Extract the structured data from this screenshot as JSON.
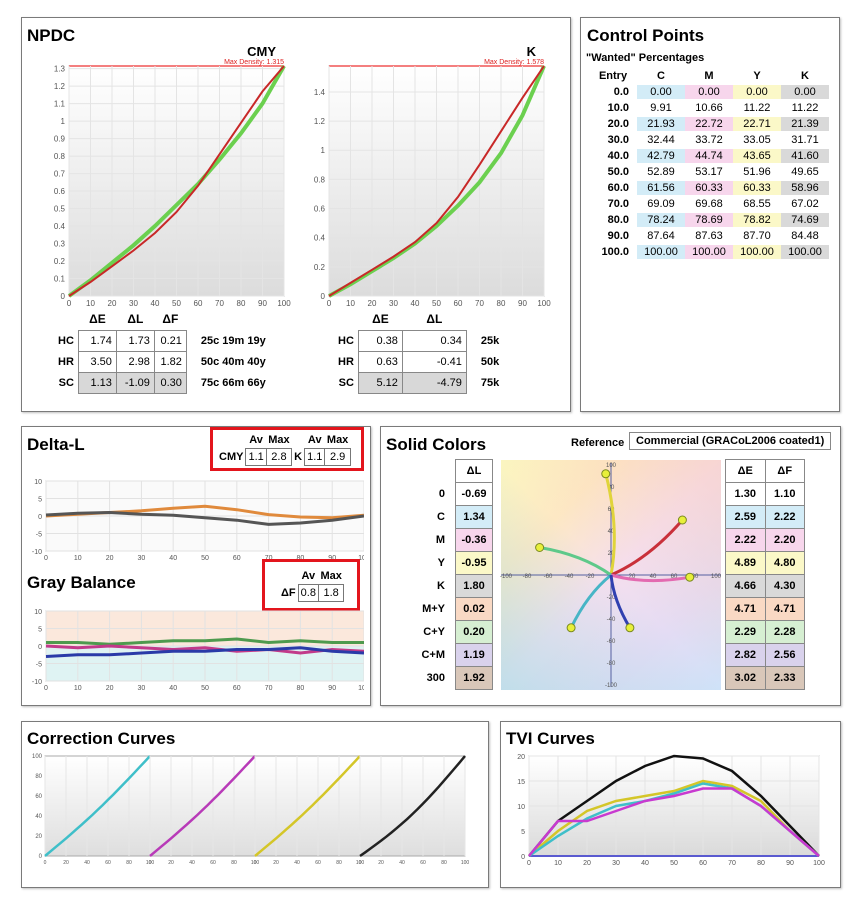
{
  "npdc": {
    "title": "NPDC",
    "cmy": {
      "label": "CMY",
      "max_density_label": "Max Density: 1.315",
      "y_ticks": [
        "0",
        "0.1",
        "0.2",
        "0.3",
        "0.4",
        "0.5",
        "0.6",
        "0.7",
        "0.8",
        "0.9",
        "1",
        "1.1",
        "1.2",
        "1.3"
      ],
      "x_ticks": [
        "0",
        "10",
        "20",
        "30",
        "40",
        "50",
        "60",
        "70",
        "80",
        "90",
        "100"
      ],
      "ylim": [
        0,
        1.315
      ],
      "green_curve": [
        [
          0,
          0
        ],
        [
          10,
          0.09
        ],
        [
          20,
          0.19
        ],
        [
          30,
          0.29
        ],
        [
          40,
          0.4
        ],
        [
          50,
          0.52
        ],
        [
          60,
          0.64
        ],
        [
          70,
          0.78
        ],
        [
          80,
          0.93
        ],
        [
          90,
          1.1
        ],
        [
          100,
          1.315
        ]
      ],
      "red_curve": [
        [
          0,
          0
        ],
        [
          10,
          0.08
        ],
        [
          20,
          0.17
        ],
        [
          30,
          0.26
        ],
        [
          40,
          0.36
        ],
        [
          50,
          0.48
        ],
        [
          60,
          0.63
        ],
        [
          70,
          0.81
        ],
        [
          80,
          0.99
        ],
        [
          90,
          1.17
        ],
        [
          100,
          1.315
        ]
      ],
      "table": {
        "headers": [
          "ΔE",
          "ΔL",
          "ΔF"
        ],
        "rows": [
          {
            "label": "HC",
            "values": [
              "1.74",
              "1.73",
              "0.21"
            ],
            "note": "25c 19m 19y"
          },
          {
            "label": "HR",
            "values": [
              "3.50",
              "2.98",
              "1.82"
            ],
            "note": "50c 40m 40y"
          },
          {
            "label": "SC",
            "values": [
              "1.13",
              "-1.09",
              "0.30"
            ],
            "note": "75c 66m 66y"
          }
        ]
      }
    },
    "k": {
      "label": "K",
      "max_density_label": "Max Density: 1.578",
      "y_ticks": [
        "0",
        "0.2",
        "0.4",
        "0.6",
        "0.8",
        "1",
        "1.2",
        "1.4"
      ],
      "x_ticks": [
        "0",
        "10",
        "20",
        "30",
        "40",
        "50",
        "60",
        "70",
        "80",
        "90",
        "100"
      ],
      "ylim": [
        0,
        1.578
      ],
      "green_curve": [
        [
          0,
          0
        ],
        [
          10,
          0.08
        ],
        [
          20,
          0.17
        ],
        [
          30,
          0.26
        ],
        [
          40,
          0.36
        ],
        [
          50,
          0.48
        ],
        [
          60,
          0.62
        ],
        [
          70,
          0.78
        ],
        [
          80,
          0.98
        ],
        [
          90,
          1.24
        ],
        [
          100,
          1.578
        ]
      ],
      "red_curve": [
        [
          0,
          0
        ],
        [
          10,
          0.09
        ],
        [
          20,
          0.18
        ],
        [
          30,
          0.27
        ],
        [
          40,
          0.37
        ],
        [
          50,
          0.5
        ],
        [
          60,
          0.68
        ],
        [
          70,
          0.9
        ],
        [
          80,
          1.13
        ],
        [
          90,
          1.36
        ],
        [
          100,
          1.578
        ]
      ],
      "table": {
        "headers": [
          "ΔE",
          "ΔL"
        ],
        "rows": [
          {
            "label": "HC",
            "values": [
              "0.38",
              "0.34"
            ],
            "note": "25k"
          },
          {
            "label": "HR",
            "values": [
              "0.63",
              "-0.41"
            ],
            "note": "50k"
          },
          {
            "label": "SC",
            "values": [
              "5.12",
              "-4.79"
            ],
            "note": "75k"
          }
        ]
      }
    }
  },
  "control_points": {
    "title": "Control Points",
    "subtitle": "\"Wanted\" Percentages",
    "headers": [
      "Entry",
      "C",
      "M",
      "Y",
      "K"
    ],
    "rows": [
      [
        "0.0",
        "0.00",
        "0.00",
        "0.00",
        "0.00"
      ],
      [
        "10.0",
        "9.91",
        "10.66",
        "11.22",
        "11.22"
      ],
      [
        "20.0",
        "21.93",
        "22.72",
        "22.71",
        "21.39"
      ],
      [
        "30.0",
        "32.44",
        "33.72",
        "33.05",
        "31.71"
      ],
      [
        "40.0",
        "42.79",
        "44.74",
        "43.65",
        "41.60"
      ],
      [
        "50.0",
        "52.89",
        "53.17",
        "51.96",
        "49.65"
      ],
      [
        "60.0",
        "61.56",
        "60.33",
        "60.33",
        "58.96"
      ],
      [
        "70.0",
        "69.09",
        "69.68",
        "68.55",
        "67.02"
      ],
      [
        "80.0",
        "78.24",
        "78.69",
        "78.82",
        "74.69"
      ],
      [
        "90.0",
        "87.64",
        "87.63",
        "87.70",
        "84.48"
      ],
      [
        "100.0",
        "100.00",
        "100.00",
        "100.00",
        "100.00"
      ]
    ]
  },
  "delta_l": {
    "title": "Delta-L",
    "box": {
      "av1": "Av",
      "max1": "Max",
      "av2": "Av",
      "max2": "Max",
      "cmy_label": "CMY",
      "cmy_av": "1.1",
      "cmy_max": "2.8",
      "k_label": "K",
      "k_av": "1.1",
      "k_max": "2.9"
    },
    "y_ticks": [
      "10",
      "5",
      "0",
      "-5",
      "-10"
    ],
    "x_ticks": [
      "0",
      "10",
      "20",
      "30",
      "40",
      "50",
      "60",
      "70",
      "80",
      "90",
      "100"
    ],
    "series": [
      {
        "color": "#e08a3c",
        "points": [
          [
            0,
            0
          ],
          [
            10,
            0.5
          ],
          [
            20,
            1
          ],
          [
            30,
            1.5
          ],
          [
            40,
            2.2
          ],
          [
            50,
            2.8
          ],
          [
            60,
            1.8
          ],
          [
            70,
            0.4
          ],
          [
            80,
            -0.3
          ],
          [
            90,
            -0.5
          ],
          [
            100,
            0.2
          ]
        ]
      },
      {
        "color": "#555555",
        "points": [
          [
            0,
            0.3
          ],
          [
            10,
            0.8
          ],
          [
            20,
            1
          ],
          [
            30,
            0.5
          ],
          [
            40,
            0.2
          ],
          [
            50,
            -0.5
          ],
          [
            60,
            -1.2
          ],
          [
            70,
            -2.4
          ],
          [
            80,
            -2
          ],
          [
            90,
            -1.2
          ],
          [
            100,
            0
          ]
        ]
      }
    ]
  },
  "gray_balance": {
    "title": "Gray Balance",
    "box": {
      "av": "Av",
      "max": "Max",
      "label": "ΔF",
      "av_val": "0.8",
      "max_val": "1.8"
    },
    "y_ticks": [
      "10",
      "5",
      "0",
      "-5",
      "-10"
    ],
    "x_ticks": [
      "0",
      "10",
      "20",
      "30",
      "40",
      "50",
      "60",
      "70",
      "80",
      "90",
      "100"
    ],
    "series": [
      {
        "color": "#4e9a4e",
        "points": [
          [
            0,
            1
          ],
          [
            10,
            1
          ],
          [
            20,
            0.5
          ],
          [
            30,
            1
          ],
          [
            40,
            1.5
          ],
          [
            50,
            1.5
          ],
          [
            60,
            2
          ],
          [
            70,
            1
          ],
          [
            80,
            1.5
          ],
          [
            90,
            1
          ],
          [
            100,
            1
          ]
        ]
      },
      {
        "color": "#c23a8a",
        "points": [
          [
            0,
            0
          ],
          [
            10,
            -0.5
          ],
          [
            20,
            0
          ],
          [
            30,
            -0.5
          ],
          [
            40,
            -1
          ],
          [
            50,
            -0.5
          ],
          [
            60,
            -1.5
          ],
          [
            70,
            -1
          ],
          [
            80,
            -2
          ],
          [
            90,
            -1
          ],
          [
            100,
            -1.5
          ]
        ]
      },
      {
        "color": "#2a3aa8",
        "points": [
          [
            0,
            -3
          ],
          [
            10,
            -2.5
          ],
          [
            20,
            -2.5
          ],
          [
            30,
            -2
          ],
          [
            40,
            -1.5
          ],
          [
            50,
            -1.5
          ],
          [
            60,
            -1
          ],
          [
            70,
            -1
          ],
          [
            80,
            -0.5
          ],
          [
            90,
            -1.5
          ],
          [
            100,
            -2
          ]
        ]
      }
    ]
  },
  "solid_colors": {
    "title": "Solid Colors",
    "reference_label": "Reference",
    "reference_value": "Commercial (GRACoL2006 coated1)",
    "dl_header": "ΔL",
    "de_header": "ΔE",
    "df_header": "ΔF",
    "rows": [
      {
        "label": "0",
        "dl": "-0.69",
        "de": "1.30",
        "df": "1.10",
        "bg": "#ffffff"
      },
      {
        "label": "C",
        "dl": "1.34",
        "de": "2.59",
        "df": "2.22",
        "bg": "#d3ecf7"
      },
      {
        "label": "M",
        "dl": "-0.36",
        "de": "2.22",
        "df": "2.20",
        "bg": "#f7d6ec"
      },
      {
        "label": "Y",
        "dl": "-0.95",
        "de": "4.89",
        "df": "4.80",
        "bg": "#fbf8c8"
      },
      {
        "label": "K",
        "dl": "1.80",
        "de": "4.66",
        "df": "4.30",
        "bg": "#d9d9d9"
      },
      {
        "label": "M+Y",
        "dl": "0.02",
        "de": "4.71",
        "df": "4.71",
        "bg": "#f9d9c4"
      },
      {
        "label": "C+Y",
        "dl": "0.20",
        "de": "2.29",
        "df": "2.28",
        "bg": "#d6efd2"
      },
      {
        "label": "C+M",
        "dl": "1.19",
        "de": "2.82",
        "df": "2.56",
        "bg": "#d9d2ec"
      },
      {
        "label": "300",
        "dl": "1.92",
        "de": "3.02",
        "df": "2.33",
        "bg": "#d9c7b9"
      }
    ],
    "x_ticks": [
      "-100",
      "-80",
      "-60",
      "-40",
      "-20",
      "0",
      "20",
      "40",
      "60",
      "80",
      "100"
    ],
    "y_ticks": [
      "100",
      "80",
      "60",
      "40",
      "20",
      "0",
      "-20",
      "-40",
      "-60",
      "-80",
      "-100"
    ],
    "curves": [
      {
        "color": "#e0d43a",
        "end": [
          -5,
          92
        ]
      },
      {
        "color": "#c9303a",
        "end": [
          68,
          50
        ]
      },
      {
        "color": "#e36ab0",
        "end": [
          75,
          -2
        ]
      },
      {
        "color": "#5ec98a",
        "end": [
          -68,
          25
        ]
      },
      {
        "color": "#47b5c6",
        "end": [
          -38,
          -48
        ]
      },
      {
        "color": "#3040b0",
        "end": [
          18,
          -48
        ]
      }
    ]
  },
  "correction_curves": {
    "title": "Correction Curves",
    "y_ticks": [
      "100",
      "80",
      "60",
      "40",
      "20",
      "0"
    ],
    "x_ticks": [
      "0",
      "20",
      "40",
      "60",
      "80",
      "100"
    ],
    "colors": [
      "#3fbfc9",
      "#b83ab8",
      "#d4c628",
      "#222222"
    ]
  },
  "tvi_curves": {
    "title": "TVI Curves",
    "y_ticks": [
      "20",
      "15",
      "10",
      "5",
      "0"
    ],
    "x_ticks": [
      "0",
      "10",
      "20",
      "30",
      "40",
      "50",
      "60",
      "70",
      "80",
      "90",
      "100"
    ],
    "series": [
      {
        "color": "#111111",
        "points": [
          [
            0,
            0
          ],
          [
            10,
            7
          ],
          [
            20,
            11
          ],
          [
            30,
            15
          ],
          [
            40,
            18
          ],
          [
            50,
            20
          ],
          [
            60,
            19.5
          ],
          [
            70,
            17
          ],
          [
            80,
            12
          ],
          [
            90,
            6
          ],
          [
            100,
            0
          ]
        ]
      },
      {
        "color": "#d4c628",
        "points": [
          [
            0,
            0
          ],
          [
            10,
            5
          ],
          [
            20,
            9
          ],
          [
            30,
            11
          ],
          [
            40,
            12
          ],
          [
            50,
            13
          ],
          [
            60,
            15
          ],
          [
            70,
            14
          ],
          [
            80,
            11
          ],
          [
            90,
            5
          ],
          [
            100,
            0
          ]
        ]
      },
      {
        "color": "#3fbfc9",
        "points": [
          [
            0,
            0
          ],
          [
            10,
            4
          ],
          [
            20,
            7.5
          ],
          [
            30,
            10
          ],
          [
            40,
            11
          ],
          [
            50,
            12.5
          ],
          [
            60,
            14.5
          ],
          [
            70,
            13.5
          ],
          [
            80,
            10
          ],
          [
            90,
            5
          ],
          [
            100,
            0
          ]
        ]
      },
      {
        "color": "#c83ad0",
        "points": [
          [
            0,
            0
          ],
          [
            10,
            7
          ],
          [
            20,
            7
          ],
          [
            30,
            9
          ],
          [
            40,
            11
          ],
          [
            50,
            12
          ],
          [
            60,
            13.5
          ],
          [
            70,
            13.5
          ],
          [
            80,
            10
          ],
          [
            90,
            5
          ],
          [
            100,
            0
          ]
        ]
      }
    ]
  }
}
